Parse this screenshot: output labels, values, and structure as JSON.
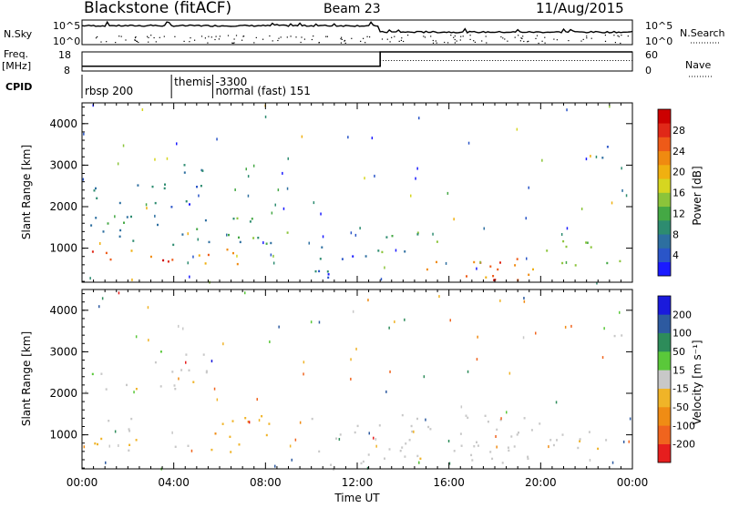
{
  "header": {
    "station": "Blackstone (fitACF)",
    "beam": "Beam 23",
    "date": "11/Aug/2015"
  },
  "status_panels": {
    "nsky_label": "N.Sky",
    "nsky_ticks": [
      "10^5",
      "10^0"
    ],
    "nsearch_label": "N.Search",
    "freq_label": "Freq.",
    "freq_unit": "[MHz]",
    "freq_ticks": [
      "18",
      "8"
    ],
    "nave_label": "Nave",
    "nave_ticks": [
      "60",
      "0"
    ],
    "cpid_label": "CPID",
    "cpid_entries": [
      {
        "hour": 0.0,
        "text": "rbsp 200"
      },
      {
        "hour": 3.9,
        "text": "themis"
      },
      {
        "hour": 5.7,
        "text": "-3300"
      },
      {
        "hour": 5.7,
        "text": "normal (fast) 151"
      }
    ],
    "freq_step_hour": 13.0,
    "freq_before_mhz": 10.5,
    "freq_after_mhz": 18
  },
  "chart_data": [
    {
      "type": "heatmap",
      "title": "",
      "xlabel": "",
      "ylabel": "Slant Range [km]",
      "xlim": [
        0,
        24
      ],
      "ylim": [
        180,
        4500
      ],
      "yticks": [
        1000,
        2000,
        3000,
        4000
      ],
      "colorbar": {
        "label": "Power [dB]",
        "ticks": [
          "28",
          "24",
          "20",
          "16",
          "12",
          "8",
          "4"
        ],
        "colors": [
          "#1a1aff",
          "#2a55c8",
          "#2d6fa0",
          "#2d8c70",
          "#44a844",
          "#8bc43a",
          "#d6d620",
          "#f0b010",
          "#f08a10",
          "#ee5a18",
          "#e02818",
          "#cc0000"
        ],
        "range": [
          0,
          30
        ]
      },
      "scatter_regions": [
        {
          "x": [
            0.3,
            2.5
          ],
          "y": [
            2100,
            2600
          ],
          "value": 6
        },
        {
          "x": [
            3.0,
            5.5
          ],
          "y": [
            2000,
            3100
          ],
          "value": 6
        },
        {
          "x": [
            0.3,
            9.0
          ],
          "y": [
            1100,
            1800
          ],
          "value": 9
        },
        {
          "x": [
            0.3,
            7.0
          ],
          "y": [
            600,
            1000
          ],
          "value": 22
        },
        {
          "x": [
            2.5,
            4.5
          ],
          "y": [
            700,
            950
          ],
          "value": 26
        },
        {
          "x": [
            10.0,
            12.5
          ],
          "y": [
            300,
            1200
          ],
          "value": 5
        },
        {
          "x": [
            12.5,
            15.5
          ],
          "y": [
            900,
            1500
          ],
          "value": 10
        },
        {
          "x": [
            15.0,
            20.0
          ],
          "y": [
            250,
            800
          ],
          "value": 22
        },
        {
          "x": [
            16.5,
            18.5
          ],
          "y": [
            250,
            700
          ],
          "value": 26
        },
        {
          "x": [
            20.0,
            23.5
          ],
          "y": [
            600,
            1200
          ],
          "value": 12
        },
        {
          "x": [
            22.5,
            23.7
          ],
          "y": [
            3100,
            3500
          ],
          "value": 6
        }
      ]
    },
    {
      "type": "heatmap",
      "title": "",
      "xlabel": "Time UT",
      "ylabel": "Slant Range [km]",
      "xlim": [
        0,
        24
      ],
      "ylim": [
        180,
        4500
      ],
      "xticks": [
        "00:00",
        "04:00",
        "08:00",
        "12:00",
        "16:00",
        "20:00",
        "00:00"
      ],
      "yticks": [
        1000,
        2000,
        3000,
        4000
      ],
      "colorbar": {
        "label": "Velocity [m s⁻¹]",
        "ticks": [
          "200",
          "100",
          "50",
          "15",
          "-15",
          "-50",
          "-100",
          "-200"
        ],
        "colors": [
          "#1a1adc",
          "#2d5aa0",
          "#2d8c5a",
          "#5ac83a",
          "#c8c8c8",
          "#f0b428",
          "#f08c14",
          "#f0641e",
          "#e61e1e"
        ],
        "range": [
          -250,
          250
        ]
      },
      "scatter_regions": [
        {
          "x": [
            0.3,
            2.5
          ],
          "y": [
            2100,
            2600
          ],
          "value": 0
        },
        {
          "x": [
            3.0,
            5.5
          ],
          "y": [
            2000,
            3100
          ],
          "value": 0
        },
        {
          "x": [
            0.3,
            2.5
          ],
          "y": [
            1100,
            1500
          ],
          "value": 0
        },
        {
          "x": [
            0.3,
            7.0
          ],
          "y": [
            600,
            1000
          ],
          "value": -40
        },
        {
          "x": [
            5.5,
            8.5
          ],
          "y": [
            1000,
            1600
          ],
          "value": -60
        },
        {
          "x": [
            10.0,
            20.0
          ],
          "y": [
            300,
            1500
          ],
          "value": 0
        },
        {
          "x": [
            20.0,
            23.5
          ],
          "y": [
            600,
            1200
          ],
          "value": 0
        },
        {
          "x": [
            22.5,
            23.7
          ],
          "y": [
            3100,
            3500
          ],
          "value": 0
        }
      ]
    }
  ]
}
